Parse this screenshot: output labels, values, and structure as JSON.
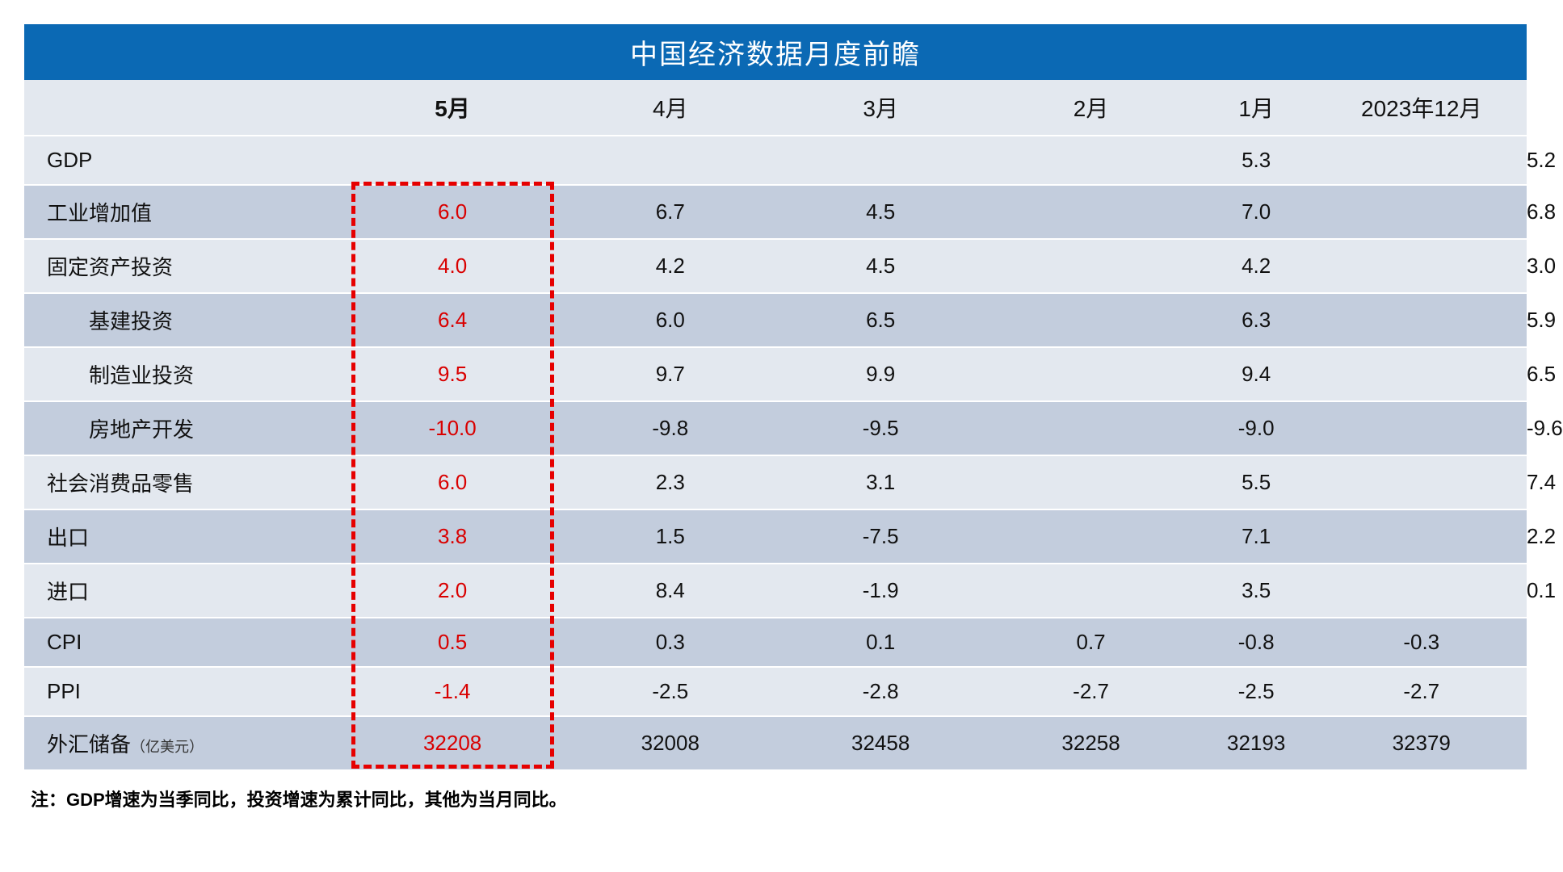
{
  "title": "中国经济数据月度前瞻",
  "highlight": {
    "border_color": "#e60000",
    "dash": "5px dashed"
  },
  "colors": {
    "title_bg": "#0b69b4",
    "title_fg": "#ffffff",
    "row_even": "#e3e8ef",
    "row_odd": "#c3cddd",
    "forecast_fg": "#d90000",
    "text": "#111111"
  },
  "columns": [
    {
      "key": "label",
      "label": ""
    },
    {
      "key": "may",
      "label": "5月",
      "bold": true,
      "highlight": true
    },
    {
      "key": "apr",
      "label": "4月"
    },
    {
      "key": "mar",
      "label": "3月"
    },
    {
      "key": "feb",
      "label": "2月"
    },
    {
      "key": "jan",
      "label": "1月"
    },
    {
      "key": "dec",
      "label": "2023年12月"
    }
  ],
  "rows": [
    {
      "label": "GDP",
      "indent": false,
      "cells": {
        "may": "",
        "apr": "",
        "mar": "",
        "feb_span": "5.3",
        "dec": "5.2"
      },
      "feb_colspan": 3
    },
    {
      "label": "工业增加值",
      "indent": false,
      "cells": {
        "may": "6.0",
        "apr": "6.7",
        "mar": "4.5",
        "feb_span": "7.0",
        "dec": "6.8"
      },
      "feb_colspan": 3
    },
    {
      "label": "固定资产投资",
      "indent": false,
      "cells": {
        "may": "4.0",
        "apr": "4.2",
        "mar": "4.5",
        "feb_span": "4.2",
        "dec": "3.0"
      },
      "feb_colspan": 3
    },
    {
      "label": "基建投资",
      "indent": true,
      "cells": {
        "may": "6.4",
        "apr": "6.0",
        "mar": "6.5",
        "feb_span": "6.3",
        "dec": "5.9"
      },
      "feb_colspan": 3
    },
    {
      "label": "制造业投资",
      "indent": true,
      "cells": {
        "may": "9.5",
        "apr": "9.7",
        "mar": "9.9",
        "feb_span": "9.4",
        "dec": "6.5"
      },
      "feb_colspan": 3
    },
    {
      "label": "房地产开发",
      "indent": true,
      "cells": {
        "may": "-10.0",
        "apr": "-9.8",
        "mar": "-9.5",
        "feb_span": "-9.0",
        "dec": "-9.6"
      },
      "feb_colspan": 3
    },
    {
      "label": "社会消费品零售",
      "indent": false,
      "cells": {
        "may": "6.0",
        "apr": "2.3",
        "mar": "3.1",
        "feb_span": "5.5",
        "dec": "7.4"
      },
      "feb_colspan": 3
    },
    {
      "label": "出口",
      "indent": false,
      "cells": {
        "may": "3.8",
        "apr": "1.5",
        "mar": "-7.5",
        "feb_span": "7.1",
        "dec": "2.2"
      },
      "feb_colspan": 3
    },
    {
      "label": "进口",
      "indent": false,
      "cells": {
        "may": "2.0",
        "apr": "8.4",
        "mar": "-1.9",
        "feb_span": "3.5",
        "dec": "0.1"
      },
      "feb_colspan": 3
    },
    {
      "label": "CPI",
      "indent": false,
      "cells": {
        "may": "0.5",
        "apr": "0.3",
        "mar": "0.1",
        "feb": "0.7",
        "jan": "-0.8",
        "dec": "-0.3"
      },
      "feb_colspan": 1
    },
    {
      "label": "PPI",
      "indent": false,
      "cells": {
        "may": "-1.4",
        "apr": "-2.5",
        "mar": "-2.8",
        "feb": "-2.7",
        "jan": "-2.5",
        "dec": "-2.7"
      },
      "feb_colspan": 1
    },
    {
      "label": "外汇储备",
      "unit": "（亿美元）",
      "indent": false,
      "cells": {
        "may": "32208",
        "apr": "32008",
        "mar": "32458",
        "feb": "32258",
        "jan": "32193",
        "dec": "32379"
      },
      "feb_colspan": 1
    }
  ],
  "footnote": "注：GDP增速为当季同比，投资增速为累计同比，其他为当月同比。"
}
